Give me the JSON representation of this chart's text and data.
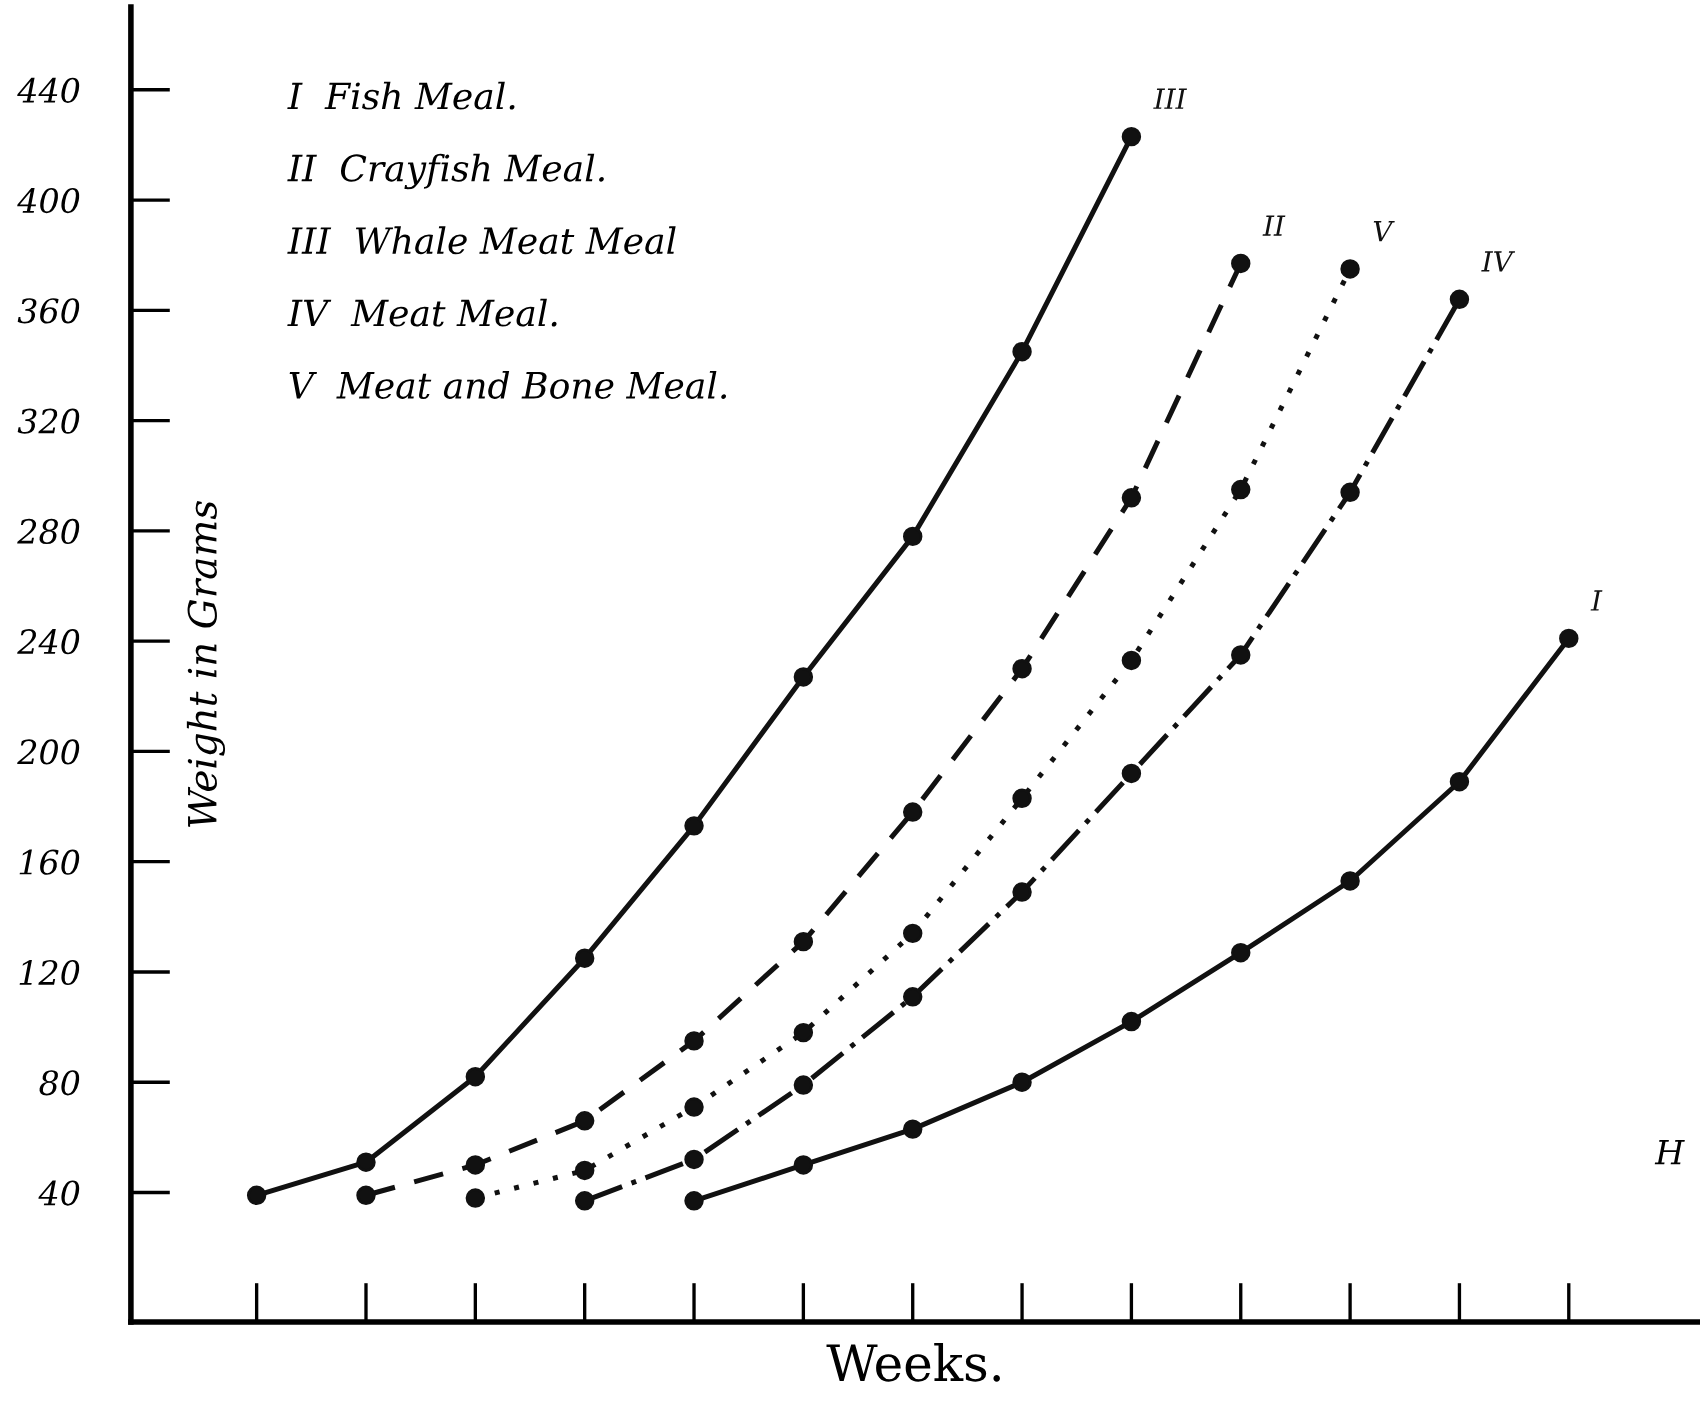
{
  "chart_data": {
    "type": "line",
    "xlabel": "Weeks.",
    "ylabel": "Weight in Grams",
    "categories": [
      null,
      null,
      null,
      null,
      null,
      null,
      null,
      null,
      null,
      null,
      null,
      null,
      null
    ],
    "series": [
      {
        "name": "III",
        "color": "#111111",
        "line_style": "solid",
        "values": [
          39,
          51,
          82,
          125,
          173,
          227,
          278,
          345,
          423,
          null,
          null,
          null,
          null
        ]
      },
      {
        "name": "II",
        "color": "#111111",
        "line_style": "dashed",
        "values": [
          null,
          39,
          50,
          66,
          95,
          131,
          178,
          230,
          292,
          377,
          null,
          null,
          null
        ]
      },
      {
        "name": "V",
        "color": "#111111",
        "line_style": "dotted",
        "values": [
          null,
          null,
          38,
          48,
          71,
          98,
          134,
          183,
          233,
          295,
          375,
          null,
          null
        ]
      },
      {
        "name": "IV",
        "color": "#111111",
        "line_style": "dashdot",
        "values": [
          null,
          null,
          null,
          37,
          52,
          79,
          111,
          149,
          192,
          235,
          294,
          364,
          null
        ]
      },
      {
        "name": "I",
        "color": "#111111",
        "line_style": "solid",
        "values": [
          null,
          null,
          null,
          null,
          37,
          50,
          63,
          80,
          102,
          127,
          153,
          189,
          241
        ]
      }
    ],
    "annotations": [
      "I  Fish Meal.",
      "II  Crayfish Meal.",
      "III  Whale Meat Meal",
      "IV  Meat Meal.",
      "V  Meat and Bone Meal.",
      "H"
    ],
    "ylim": [
      -7,
      470
    ],
    "yticks": [
      40,
      80,
      120,
      160,
      200,
      240,
      280,
      320,
      360,
      400,
      440
    ],
    "marker": "circle",
    "grid": false,
    "legend": false
  }
}
